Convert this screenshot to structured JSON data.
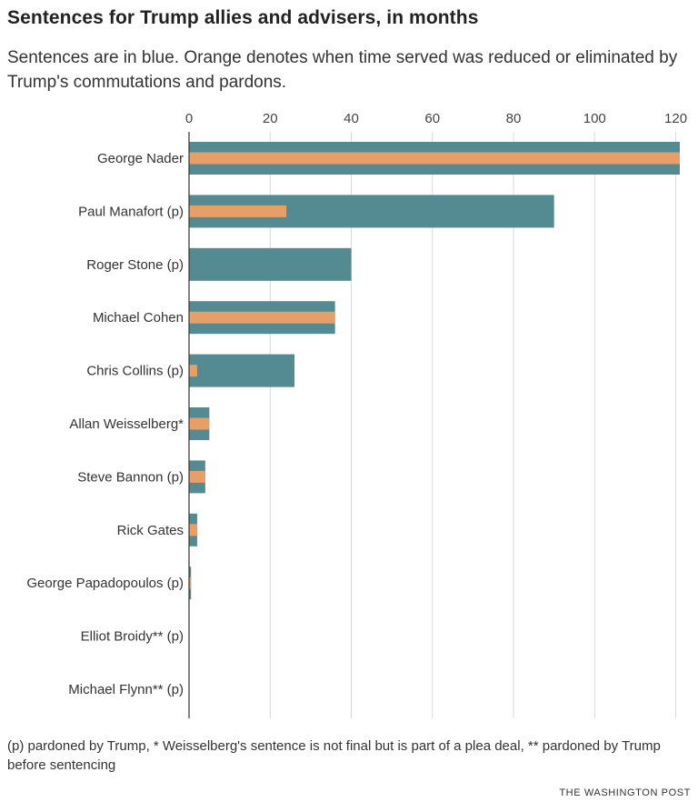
{
  "title": "Sentences for Trump allies and advisers, in months",
  "subtitle": "Sentences are in blue. Orange denotes when time served was reduced or eliminated by Trump's commutations and pardons.",
  "footnote": "(p) pardoned by Trump, * Weisselberg's sentence is not final but is part of a plea deal, ** pardoned by Trump before sentencing",
  "credit": "THE WASHINGTON POST",
  "colors": {
    "sentence": "#548a91",
    "reduced": "#e79f67",
    "grid": "#d9d9d9",
    "axis": "#333333"
  },
  "chart_data": {
    "type": "bar",
    "orientation": "horizontal",
    "xlim": [
      0,
      121
    ],
    "xticks": [
      0,
      20,
      40,
      60,
      80,
      100,
      120
    ],
    "grid": true,
    "categories": [
      "George Nader",
      "Paul Manafort (p)",
      "Roger Stone (p)",
      "Michael Cohen",
      "Chris Collins (p)",
      "Allan Weisselberg*",
      "Steve Bannon (p)",
      "Rick Gates",
      "George Papadopoulos (p)",
      "Elliot Broidy** (p)",
      "Michael Flynn** (p)"
    ],
    "series": [
      {
        "color": "sentence",
        "values": [
          121,
          90,
          40,
          36,
          26,
          5,
          4,
          2,
          0.5,
          0,
          0
        ]
      },
      {
        "color": "reduced",
        "values": [
          121,
          24,
          0,
          36,
          2,
          5,
          4,
          2,
          0.5,
          0,
          0
        ]
      }
    ]
  }
}
